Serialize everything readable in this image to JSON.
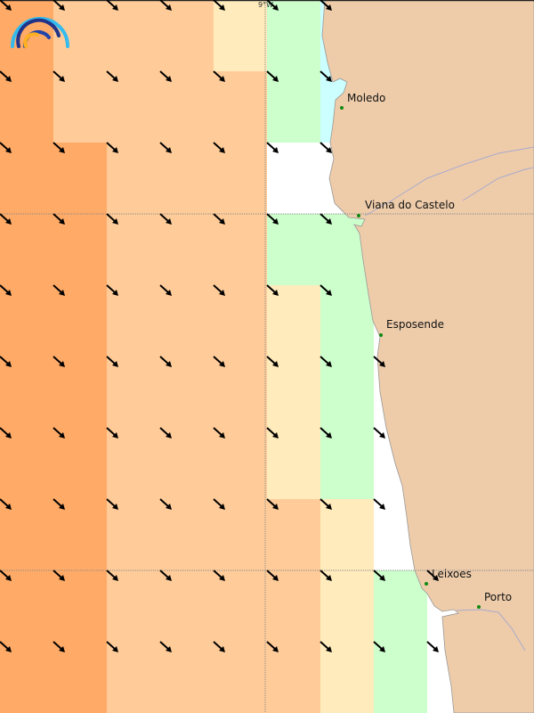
{
  "map": {
    "graticule_label": "9°W",
    "legend_colors": {
      "dark_orange": "#FFAA66",
      "light_orange": "#FFCC99",
      "pale_yellow": "#FFEBBB",
      "green": "#CCFFCC",
      "cyan": "#CCFFFF",
      "white": "#FFFFFF",
      "land": "#EECCAA",
      "river": "#AAAACC"
    },
    "grid": [
      [
        "D",
        "L",
        "L",
        "L",
        "P",
        "G",
        "C"
      ],
      [
        "D",
        "L",
        "L",
        "L",
        "L",
        "G",
        "C"
      ],
      [
        "D",
        "D",
        "L",
        "L",
        "L",
        "W",
        "W"
      ],
      [
        "D",
        "D",
        "L",
        "L",
        "L",
        "G",
        "G"
      ],
      [
        "D",
        "D",
        "L",
        "L",
        "L",
        "P",
        "G"
      ],
      [
        "D",
        "D",
        "L",
        "L",
        "L",
        "P",
        "G",
        "W"
      ],
      [
        "D",
        "D",
        "L",
        "L",
        "L",
        "P",
        "G",
        "W"
      ],
      [
        "D",
        "D",
        "L",
        "L",
        "L",
        "L",
        "P",
        "W"
      ],
      [
        "D",
        "D",
        "L",
        "L",
        "L",
        "L",
        "P",
        "G",
        "W"
      ],
      [
        "D",
        "D",
        "L",
        "L",
        "L",
        "L",
        "P",
        "G",
        "W"
      ]
    ],
    "arrow_direction": "southeast",
    "cities": [
      {
        "name": "Moledo"
      },
      {
        "name": "Viana do Castelo"
      },
      {
        "name": "Esposende"
      },
      {
        "name": "Leixoes"
      },
      {
        "name": "Porto"
      }
    ],
    "logo_icon": "rainbow-arcs-logo"
  }
}
